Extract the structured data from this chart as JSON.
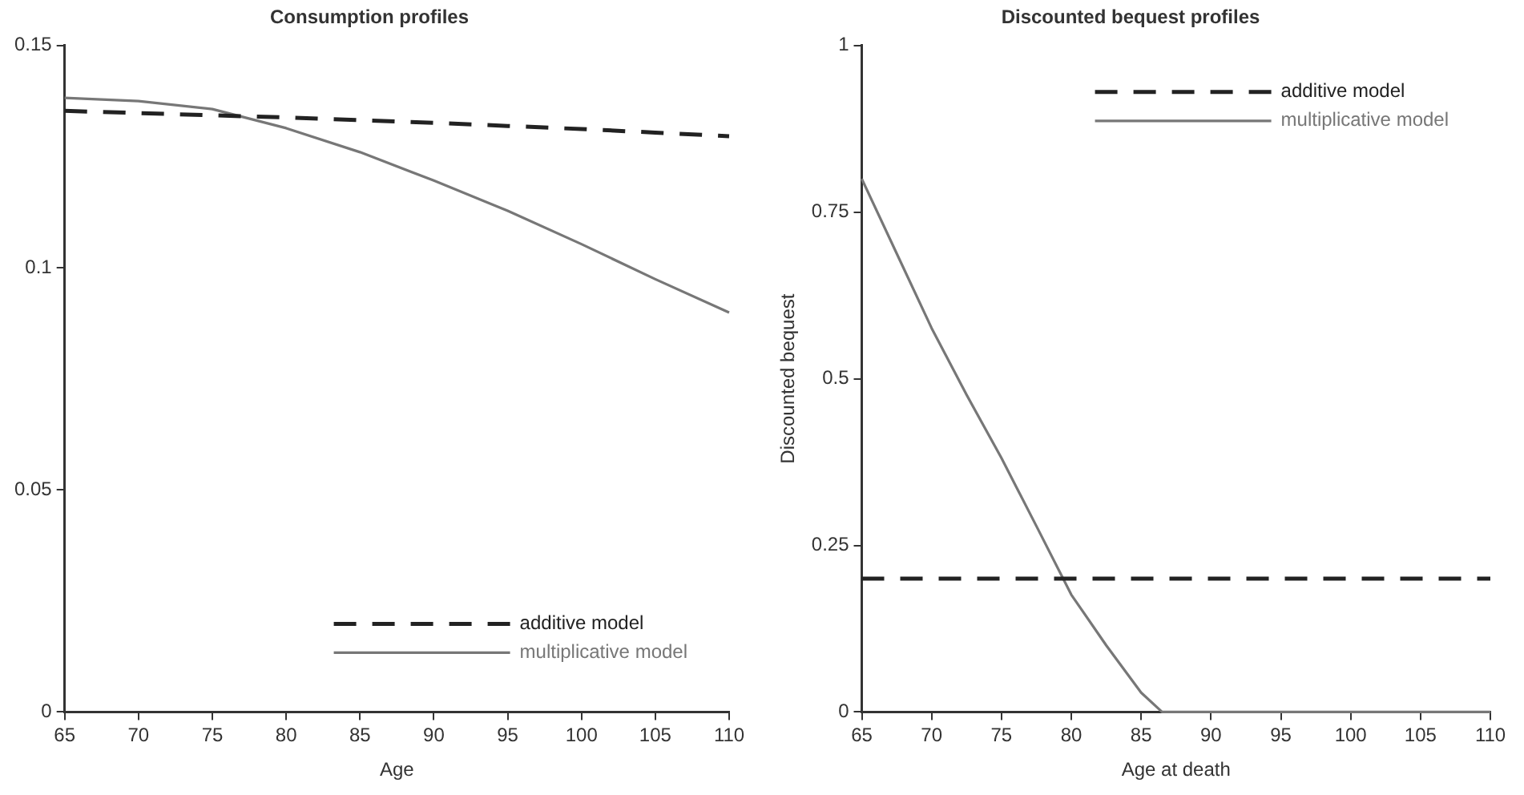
{
  "chart_data": [
    {
      "type": "line",
      "title": "Consumption profiles",
      "xlabel": "Age",
      "x": [
        65,
        70,
        75,
        80,
        85,
        90,
        95,
        100,
        105,
        110
      ],
      "series": [
        {
          "name": "additive model",
          "color": "#222222",
          "line_style": "dashed",
          "values": [
            0.1353,
            0.1348,
            0.1343,
            0.1338,
            0.1332,
            0.1326,
            0.1319,
            0.1312,
            0.1304,
            0.1296
          ]
        },
        {
          "name": "multiplicative model",
          "color": "#777777",
          "line_style": "solid",
          "values": [
            0.1382,
            0.1375,
            0.1357,
            0.1314,
            0.126,
            0.1196,
            0.1128,
            0.1053,
            0.0974,
            0.0899
          ]
        }
      ],
      "xlim": [
        65,
        110
      ],
      "xticks": [
        65,
        70,
        75,
        80,
        85,
        90,
        95,
        100,
        105,
        110
      ],
      "ylim": [
        0,
        0.15
      ],
      "yticks": [
        0,
        0.05,
        0.1,
        0.15
      ],
      "grid": false,
      "legend": "bottom right",
      "marker": "none"
    },
    {
      "type": "line",
      "title": "Discounted bequest profiles",
      "xlabel": "Age at death",
      "ylabel": "Discounted bequest",
      "x": [
        65,
        67.5,
        70,
        72.5,
        75,
        77.5,
        80,
        82.5,
        85,
        86.5,
        110
      ],
      "series": [
        {
          "name": "additive model",
          "color": "#222222",
          "line_style": "dashed",
          "values": [
            0.2,
            0.2,
            0.2,
            0.2,
            0.2,
            0.2,
            0.2,
            0.2,
            0.2,
            0.2,
            0.2
          ]
        },
        {
          "name": "multiplicative model",
          "color": "#777777",
          "line_style": "solid",
          "values": [
            0.8,
            0.688,
            0.576,
            0.476,
            0.381,
            0.279,
            0.176,
            0.1,
            0.029,
            0,
            0
          ]
        }
      ],
      "xlim": [
        65,
        110
      ],
      "xticks": [
        65,
        70,
        75,
        80,
        85,
        90,
        95,
        100,
        105,
        110
      ],
      "ylim": [
        0,
        1
      ],
      "yticks": [
        0,
        0.25,
        0.5,
        0.75,
        1
      ],
      "grid": false,
      "legend": "top right",
      "marker": "none"
    }
  ]
}
